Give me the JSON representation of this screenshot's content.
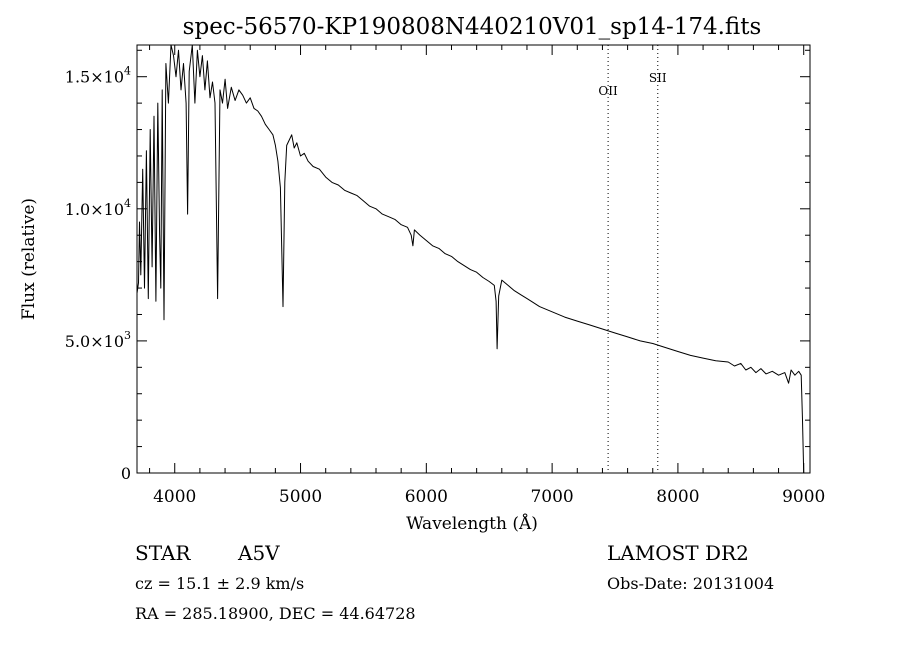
{
  "chart_data": {
    "type": "line",
    "title": "spec-56570-KP190808N440210V01_sp14-174.fits",
    "xlabel": "Wavelength (Å)",
    "ylabel": "Flux (relative)",
    "xlim": [
      3700,
      9050
    ],
    "ylim": [
      0,
      16200
    ],
    "x_ticks": [
      4000,
      5000,
      6000,
      7000,
      8000,
      9000
    ],
    "y_ticks": [
      {
        "value": 0,
        "mantissa": "0",
        "exp": ""
      },
      {
        "value": 5000,
        "mantissa": "5.0×10",
        "exp": "3"
      },
      {
        "value": 10000,
        "mantissa": "1.0×10",
        "exp": "4"
      },
      {
        "value": 15000,
        "mantissa": "1.5×10",
        "exp": "4"
      }
    ],
    "grid": false,
    "annotations": [
      {
        "label": "OII",
        "x": 7445,
        "label_y": 14300
      },
      {
        "label": "SII",
        "x": 7840,
        "label_y": 14800
      }
    ],
    "series": [
      {
        "x": [
          3700,
          3712,
          3720,
          3730,
          3745,
          3760,
          3775,
          3790,
          3805,
          3820,
          3835,
          3850,
          3865,
          3880,
          3889,
          3900,
          3915,
          3930,
          3950,
          3970,
          3990,
          4010,
          4030,
          4050,
          4070,
          4090,
          4102,
          4115,
          4140,
          4160,
          4180,
          4200,
          4220,
          4240,
          4260,
          4280,
          4300,
          4320,
          4341,
          4360,
          4380,
          4400,
          4420,
          4450,
          4480,
          4510,
          4540,
          4570,
          4600,
          4630,
          4660,
          4690,
          4720,
          4750,
          4780,
          4800,
          4820,
          4840,
          4861,
          4875,
          4890,
          4910,
          4930,
          4950,
          4970,
          5000,
          5030,
          5060,
          5100,
          5150,
          5200,
          5250,
          5300,
          5350,
          5400,
          5450,
          5500,
          5550,
          5600,
          5650,
          5700,
          5750,
          5800,
          5850,
          5880,
          5893,
          5905,
          5950,
          6000,
          6050,
          6100,
          6150,
          6200,
          6250,
          6300,
          6350,
          6400,
          6450,
          6500,
          6540,
          6555,
          6563,
          6575,
          6600,
          6650,
          6700,
          6750,
          6800,
          6850,
          6900,
          6950,
          7000,
          7100,
          7200,
          7300,
          7400,
          7500,
          7600,
          7700,
          7800,
          7900,
          8000,
          8100,
          8200,
          8300,
          8400,
          8450,
          8500,
          8540,
          8580,
          8620,
          8660,
          8700,
          8750,
          8800,
          8850,
          8880,
          8900,
          8930,
          8960,
          8980,
          8990,
          9000
        ],
        "y": [
          6800,
          7200,
          9500,
          7500,
          11500,
          7000,
          12200,
          6600,
          13000,
          7800,
          13500,
          6500,
          14000,
          9000,
          7000,
          14500,
          5800,
          15500,
          14000,
          16200,
          15800,
          15000,
          16000,
          14500,
          15500,
          14000,
          9800,
          15200,
          16200,
          14000,
          16000,
          15000,
          15800,
          14500,
          15600,
          14200,
          14800,
          14000,
          6600,
          14500,
          14000,
          14900,
          13800,
          14600,
          14100,
          14500,
          14300,
          14000,
          14200,
          13800,
          13700,
          13500,
          13200,
          13000,
          12800,
          12400,
          11800,
          10800,
          6300,
          11000,
          12400,
          12600,
          12800,
          12300,
          12500,
          12000,
          12100,
          11800,
          11600,
          11500,
          11200,
          11000,
          10900,
          10700,
          10600,
          10500,
          10300,
          10100,
          10000,
          9800,
          9700,
          9600,
          9400,
          9300,
          9000,
          8600,
          9200,
          9000,
          8800,
          8600,
          8500,
          8300,
          8200,
          8000,
          7850,
          7700,
          7600,
          7400,
          7250,
          7100,
          6500,
          4700,
          6700,
          7300,
          7100,
          6900,
          6750,
          6600,
          6450,
          6300,
          6200,
          6100,
          5900,
          5750,
          5600,
          5450,
          5300,
          5150,
          5000,
          4900,
          4750,
          4600,
          4450,
          4350,
          4250,
          4200,
          4050,
          4150,
          3900,
          4000,
          3800,
          3950,
          3750,
          3850,
          3700,
          3800,
          3400,
          3900,
          3700,
          3850,
          3700,
          2000,
          0
        ]
      }
    ]
  },
  "info": {
    "object_type": "STAR",
    "spectral_class": "A5V",
    "survey": "LAMOST DR2",
    "cz": "cz = 15.1 ± 2.9 km/s",
    "obs_date": "Obs-Date: 20131004",
    "coords": "RA = 285.18900, DEC =  44.64728"
  }
}
